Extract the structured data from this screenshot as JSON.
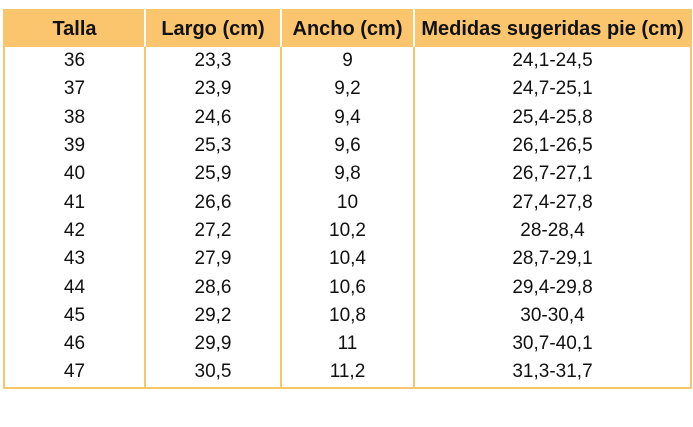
{
  "table": {
    "headers": [
      "Talla",
      "Largo (cm)",
      "Ancho (cm)",
      "Medidas sugeridas pie (cm)"
    ],
    "rows": [
      [
        "36",
        "23,3",
        "9",
        "24,1-24,5"
      ],
      [
        "37",
        "23,9",
        "9,2",
        "24,7-25,1"
      ],
      [
        "38",
        "24,6",
        "9,4",
        "25,4-25,8"
      ],
      [
        "39",
        "25,3",
        "9,6",
        "26,1-26,5"
      ],
      [
        "40",
        "25,9",
        "9,8",
        "26,7-27,1"
      ],
      [
        "41",
        "26,6",
        "10",
        "27,4-27,8"
      ],
      [
        "42",
        "27,2",
        "10,2",
        "28-28,4"
      ],
      [
        "43",
        "27,9",
        "10,4",
        "28,7-29,1"
      ],
      [
        "44",
        "28,6",
        "10,6",
        "29,4-29,8"
      ],
      [
        "45",
        "29,2",
        "10,8",
        "30-30,4"
      ],
      [
        "46",
        "29,9",
        "11",
        "30,7-40,1"
      ],
      [
        "47",
        "30,5",
        "11,2",
        "31,3-31,7"
      ]
    ],
    "colors": {
      "header_bg": "#FBC56D",
      "border": "#F5C66B",
      "text": "#111111"
    }
  }
}
